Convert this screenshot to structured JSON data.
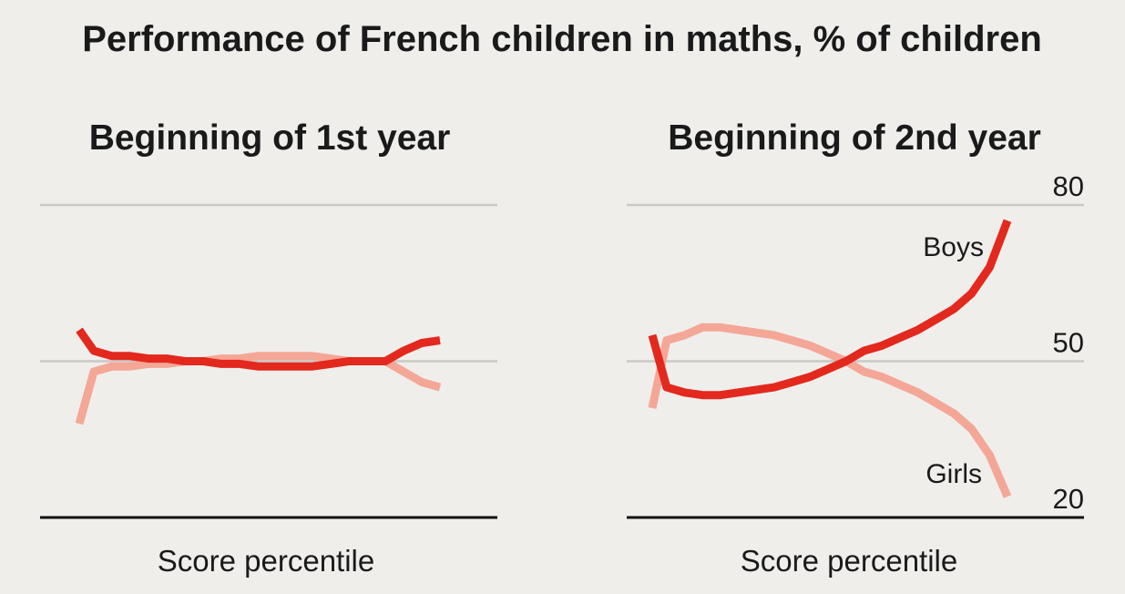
{
  "title": "Performance of French children in maths, % of children",
  "colors": {
    "background": "#efeeeb",
    "boys": "#e3281e",
    "girls": "#f4a796",
    "grid": "#c9c9c6",
    "axis": "#111111"
  },
  "chart_data": [
    {
      "type": "line",
      "title": "Beginning of 1st year",
      "xlabel": "Score percentile",
      "ylabel": "",
      "x": [
        1,
        5,
        10,
        15,
        20,
        25,
        30,
        35,
        40,
        45,
        50,
        55,
        60,
        65,
        70,
        75,
        80,
        85,
        90,
        95,
        100
      ],
      "ylim": [
        20,
        80
      ],
      "yticks": [],
      "series": [
        {
          "name": "",
          "role": "boys",
          "values": [
            56,
            52,
            51,
            51,
            50.5,
            50.5,
            50,
            50,
            49.5,
            49.5,
            49,
            49,
            49,
            49,
            49.5,
            50,
            50,
            50,
            52,
            53.5,
            54
          ]
        },
        {
          "name": "",
          "role": "girls",
          "values": [
            38,
            48,
            49,
            49,
            49.5,
            49.5,
            50,
            50,
            50.5,
            50.5,
            51,
            51,
            51,
            51,
            50.5,
            50,
            50,
            50,
            48,
            46,
            45
          ]
        }
      ]
    },
    {
      "type": "line",
      "title": "Beginning of 2nd year",
      "xlabel": "Score percentile",
      "ylabel": "",
      "x": [
        1,
        5,
        10,
        15,
        20,
        25,
        30,
        35,
        40,
        45,
        50,
        55,
        60,
        65,
        70,
        75,
        80,
        85,
        90,
        95,
        100
      ],
      "ylim": [
        20,
        80
      ],
      "yticks": [
        80,
        50,
        20
      ],
      "series": [
        {
          "name": "Boys",
          "role": "boys",
          "values": [
            55,
            45,
            44,
            43.5,
            43.5,
            44,
            44.5,
            45,
            46,
            47,
            48.5,
            50,
            52,
            53,
            54.5,
            56,
            58,
            60,
            63,
            68,
            77
          ]
        },
        {
          "name": "Girls",
          "role": "girls",
          "values": [
            41,
            54,
            55,
            56.5,
            56.5,
            56,
            55.5,
            55,
            54,
            53,
            51.5,
            50,
            48,
            47,
            45.5,
            44,
            42,
            40,
            37,
            32,
            24
          ]
        }
      ]
    }
  ]
}
